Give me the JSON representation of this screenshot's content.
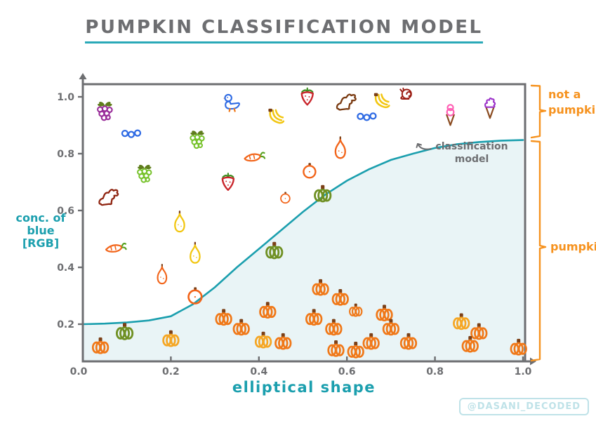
{
  "title": {
    "text": "PUMPKIN CLASSIFICATION MODEL"
  },
  "watermark": "@DASANI_DECODED",
  "annotations": {
    "curve_label_line1": "classification",
    "curve_label_line2": "model",
    "region_top_line1": "not a",
    "region_top_line2": "pumpkin",
    "region_bottom": "pumpkin"
  },
  "colors": {
    "accent_teal": "#1b9fae",
    "title_gray": "#6d6e71",
    "label_orange": "#f6921e",
    "region_fill": "#e9f4f6",
    "watermark_teal": "#bfe2e8",
    "axis_gray": "#6d6e71"
  },
  "chart_data": {
    "type": "scatter",
    "title": "PUMPKIN CLASSIFICATION MODEL",
    "xlabel": "elliptical shape",
    "ylabel": "conc. of blue [RGB]",
    "ylabel_lines": [
      "conc. of",
      "blue",
      "[RGB]"
    ],
    "x_ticks": [
      "0.0",
      "0.2",
      "0.4",
      "0.6",
      "0.8",
      "1.0"
    ],
    "y_ticks": [
      "1.0",
      "0.8",
      "0.6",
      "0.4",
      "0.2"
    ],
    "xlim": [
      0,
      1.0
    ],
    "ylim": [
      0.07,
      1.04
    ],
    "grid": false,
    "legend": "none",
    "regions": {
      "above_curve": "not a pumpkin",
      "below_curve": "pumpkin"
    },
    "curve": {
      "label": "classification model",
      "color": "#1b9fae",
      "fill_below": "#e9f4f6",
      "points": [
        [
          0,
          0.2
        ],
        [
          0.05,
          0.202
        ],
        [
          0.1,
          0.206
        ],
        [
          0.15,
          0.213
        ],
        [
          0.2,
          0.228
        ],
        [
          0.25,
          0.27
        ],
        [
          0.3,
          0.33
        ],
        [
          0.35,
          0.4
        ],
        [
          0.4,
          0.465
        ],
        [
          0.45,
          0.53
        ],
        [
          0.5,
          0.595
        ],
        [
          0.55,
          0.655
        ],
        [
          0.6,
          0.705
        ],
        [
          0.65,
          0.745
        ],
        [
          0.7,
          0.778
        ],
        [
          0.75,
          0.8
        ],
        [
          0.8,
          0.82
        ],
        [
          0.85,
          0.833
        ],
        [
          0.9,
          0.841
        ],
        [
          0.95,
          0.846
        ],
        [
          1.0,
          0.848
        ]
      ]
    },
    "points": [
      {
        "type": "grapes-purple",
        "x": 0.05,
        "y": 0.95
      },
      {
        "type": "blueberries",
        "x": 0.11,
        "y": 0.87
      },
      {
        "type": "duck",
        "x": 0.34,
        "y": 0.98
      },
      {
        "type": "grapes-green",
        "x": 0.26,
        "y": 0.85
      },
      {
        "type": "grapes-green",
        "x": 0.14,
        "y": 0.73
      },
      {
        "type": "dog-maroon",
        "x": 0.06,
        "y": 0.645
      },
      {
        "type": "strawberry",
        "x": 0.33,
        "y": 0.7
      },
      {
        "type": "pear-yellow",
        "x": 0.22,
        "y": 0.56
      },
      {
        "type": "strawberry",
        "x": 0.51,
        "y": 1.0
      },
      {
        "type": "dog-brown",
        "x": 0.6,
        "y": 0.98
      },
      {
        "type": "banana",
        "x": 0.68,
        "y": 0.985
      },
      {
        "type": "banana",
        "x": 0.44,
        "y": 0.93
      },
      {
        "type": "blueberries",
        "x": 0.645,
        "y": 0.93
      },
      {
        "type": "carrot",
        "x": 0.39,
        "y": 0.79
      },
      {
        "type": "pear-orange",
        "x": 0.585,
        "y": 0.82,
        "scale": 1.1
      },
      {
        "type": "tangerine",
        "x": 0.515,
        "y": 0.74
      },
      {
        "type": "tangerine",
        "x": 0.46,
        "y": 0.645,
        "scale": 0.75
      },
      {
        "type": "pumpkin-green",
        "x": 0.545,
        "y": 0.66
      },
      {
        "type": "snail",
        "x": 0.735,
        "y": 1.01
      },
      {
        "type": "icecream-pink",
        "x": 0.835,
        "y": 0.935
      },
      {
        "type": "icecream-purple",
        "x": 0.925,
        "y": 0.96
      },
      {
        "type": "carrot",
        "x": 0.075,
        "y": 0.47
      },
      {
        "type": "pear-yellow",
        "x": 0.255,
        "y": 0.45
      },
      {
        "type": "pear-orange",
        "x": 0.18,
        "y": 0.375
      },
      {
        "type": "tangerine",
        "x": 0.255,
        "y": 0.3,
        "scale": 1.1
      },
      {
        "type": "pumpkin-orange",
        "x": 0.04,
        "y": 0.125
      },
      {
        "type": "pumpkin-green",
        "x": 0.095,
        "y": 0.175
      },
      {
        "type": "pumpkin-yellow",
        "x": 0.2,
        "y": 0.15
      },
      {
        "type": "pumpkin-orange",
        "x": 0.32,
        "y": 0.225
      },
      {
        "type": "pumpkin-orange",
        "x": 0.36,
        "y": 0.19
      },
      {
        "type": "pumpkin-orange",
        "x": 0.42,
        "y": 0.25
      },
      {
        "type": "pumpkin-yellow",
        "x": 0.41,
        "y": 0.145
      },
      {
        "type": "pumpkin-orange",
        "x": 0.455,
        "y": 0.14
      },
      {
        "type": "pumpkin-green",
        "x": 0.435,
        "y": 0.46
      },
      {
        "type": "pumpkin-orange",
        "x": 0.54,
        "y": 0.33
      },
      {
        "type": "pumpkin-orange",
        "x": 0.585,
        "y": 0.295
      },
      {
        "type": "pumpkin-orange",
        "x": 0.525,
        "y": 0.225
      },
      {
        "type": "pumpkin-orange",
        "x": 0.57,
        "y": 0.19
      },
      {
        "type": "pumpkin-orange",
        "x": 0.62,
        "y": 0.25,
        "scale": 0.8
      },
      {
        "type": "pumpkin-orange",
        "x": 0.575,
        "y": 0.115
      },
      {
        "type": "pumpkin-orange",
        "x": 0.62,
        "y": 0.11
      },
      {
        "type": "pumpkin-orange",
        "x": 0.655,
        "y": 0.14
      },
      {
        "type": "pumpkin-orange",
        "x": 0.685,
        "y": 0.24
      },
      {
        "type": "pumpkin-orange",
        "x": 0.7,
        "y": 0.19
      },
      {
        "type": "pumpkin-orange",
        "x": 0.74,
        "y": 0.14
      },
      {
        "type": "pumpkin-yellow",
        "x": 0.86,
        "y": 0.21
      },
      {
        "type": "pumpkin-orange",
        "x": 0.9,
        "y": 0.175
      },
      {
        "type": "pumpkin-orange",
        "x": 0.88,
        "y": 0.13
      },
      {
        "type": "pumpkin-orange",
        "x": 0.99,
        "y": 0.12
      }
    ]
  }
}
